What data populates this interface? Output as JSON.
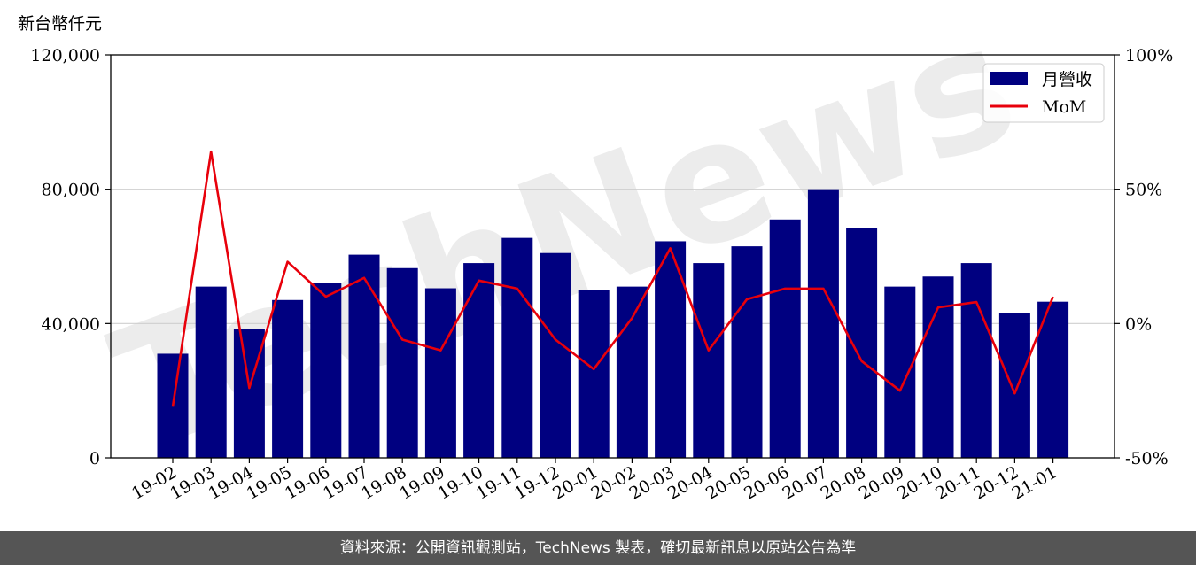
{
  "chart_data": {
    "type": "bar",
    "unit_label": "新台幣仟元",
    "categories": [
      "19-02",
      "19-03",
      "19-04",
      "19-05",
      "19-06",
      "19-07",
      "19-08",
      "19-09",
      "19-10",
      "19-11",
      "19-12",
      "20-01",
      "20-02",
      "20-03",
      "20-04",
      "20-05",
      "20-06",
      "20-07",
      "20-08",
      "20-09",
      "20-10",
      "20-11",
      "20-12",
      "21-01"
    ],
    "series": [
      {
        "name": "月營收",
        "type": "bar",
        "axis": "left",
        "color": "#000080",
        "values": [
          31000,
          51000,
          38500,
          47000,
          52000,
          60500,
          56500,
          50500,
          58000,
          65500,
          61000,
          50000,
          51000,
          64500,
          58000,
          63000,
          71000,
          80000,
          68500,
          51000,
          54000,
          58000,
          43000,
          46500
        ]
      },
      {
        "name": "MoM",
        "type": "line",
        "axis": "right",
        "color": "#e8000b",
        "values": [
          -31,
          64,
          -24,
          23,
          10,
          17,
          -6,
          -10,
          16,
          13,
          -6,
          -17,
          2,
          28,
          -10,
          9,
          13,
          13,
          -14,
          -25,
          6,
          8,
          -26,
          10
        ]
      }
    ],
    "y_left": {
      "ylim": [
        0,
        120000
      ],
      "ticks": [
        "0",
        "40,000",
        "80,000",
        "120,000"
      ],
      "tick_values": [
        0,
        40000,
        80000,
        120000
      ]
    },
    "y_right": {
      "ylim": [
        -50,
        100
      ],
      "ticks": [
        "-50%",
        "0%",
        "50%",
        "100%"
      ],
      "tick_values": [
        -50,
        0,
        50,
        100
      ]
    },
    "grid": "horizontal",
    "legend_position": "top-right"
  },
  "watermark": {
    "text": "TechNews"
  },
  "footer": {
    "text": "資料來源：公開資訊觀測站，TechNews 製表，確切最新訊息以原站公告為準"
  }
}
